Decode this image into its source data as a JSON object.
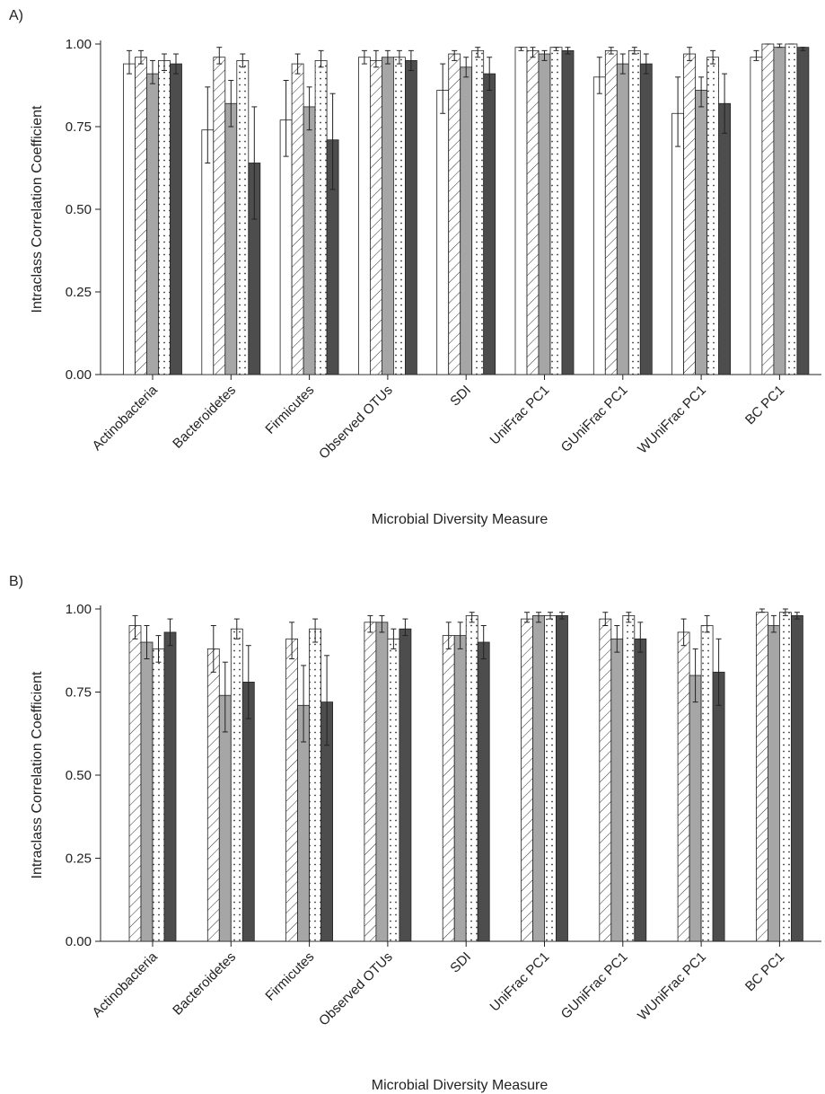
{
  "figure": {
    "x_categories_note": ""
  },
  "chart_data": [
    {
      "type": "bar",
      "panel_label": "A)",
      "xlabel": "Microbial Diversity Measure",
      "ylabel": "Intraclass Correlation Coefficient",
      "ylim": [
        0,
        1.0
      ],
      "yticks": [
        "0.00",
        "0.25",
        "0.50",
        "0.75",
        "1.00"
      ],
      "ytick_values": [
        0,
        0.25,
        0.5,
        0.75,
        1.0
      ],
      "grid": false,
      "categories": [
        "Actinobacteria",
        "Bacteroidetes",
        "Firmicutes",
        "Observed OTUs",
        "SDI",
        "UniFrac PC1",
        "GUniFrac PC1",
        "WUniFrac PC1",
        "BC PC1"
      ],
      "series": [
        {
          "pattern": "white",
          "values": [
            0.94,
            0.74,
            0.77,
            0.96,
            0.86,
            0.99,
            0.9,
            0.79,
            0.96
          ],
          "err_low": [
            0.91,
            0.64,
            0.66,
            0.94,
            0.79,
            0.98,
            0.85,
            0.69,
            0.95
          ],
          "err_high": [
            0.98,
            0.87,
            0.89,
            0.98,
            0.94,
            0.99,
            0.96,
            0.9,
            0.98
          ]
        },
        {
          "pattern": "hatch",
          "values": [
            0.96,
            0.96,
            0.94,
            0.95,
            0.97,
            0.98,
            0.98,
            0.97,
            1.0
          ],
          "err_low": [
            0.94,
            0.94,
            0.91,
            0.93,
            0.95,
            0.96,
            0.97,
            0.95,
            1.0
          ],
          "err_high": [
            0.98,
            0.99,
            0.97,
            0.98,
            0.98,
            0.99,
            0.99,
            0.99,
            1.0
          ]
        },
        {
          "pattern": "gray",
          "values": [
            0.91,
            0.82,
            0.81,
            0.96,
            0.93,
            0.97,
            0.94,
            0.86,
            0.99
          ],
          "err_low": [
            0.88,
            0.75,
            0.74,
            0.94,
            0.9,
            0.95,
            0.91,
            0.81,
            0.99
          ],
          "err_high": [
            0.95,
            0.89,
            0.87,
            0.98,
            0.96,
            0.98,
            0.97,
            0.9,
            1.0
          ]
        },
        {
          "pattern": "dots",
          "values": [
            0.95,
            0.95,
            0.95,
            0.96,
            0.98,
            0.99,
            0.98,
            0.96,
            1.0
          ],
          "err_low": [
            0.92,
            0.93,
            0.93,
            0.94,
            0.96,
            0.98,
            0.97,
            0.94,
            1.0
          ],
          "err_high": [
            0.97,
            0.97,
            0.98,
            0.98,
            0.99,
            0.99,
            0.99,
            0.98,
            1.0
          ]
        },
        {
          "pattern": "dark",
          "values": [
            0.94,
            0.64,
            0.71,
            0.95,
            0.91,
            0.98,
            0.94,
            0.82,
            0.99
          ],
          "err_low": [
            0.91,
            0.47,
            0.56,
            0.92,
            0.86,
            0.97,
            0.91,
            0.73,
            0.98
          ],
          "err_high": [
            0.97,
            0.81,
            0.85,
            0.98,
            0.96,
            0.99,
            0.97,
            0.91,
            0.99
          ]
        }
      ]
    },
    {
      "type": "bar",
      "panel_label": "B)",
      "xlabel": "Microbial Diversity Measure",
      "ylabel": "Intraclass Correlation Coefficient",
      "ylim": [
        0,
        1.0
      ],
      "yticks": [
        "0.00",
        "0.25",
        "0.50",
        "0.75",
        "1.00"
      ],
      "ytick_values": [
        0,
        0.25,
        0.5,
        0.75,
        1.0
      ],
      "grid": false,
      "categories": [
        "Actinobacteria",
        "Bacteroidetes",
        "Firmicutes",
        "Observed OTUs",
        "SDI",
        "UniFrac PC1",
        "GUniFrac PC1",
        "WUniFrac PC1",
        "BC PC1"
      ],
      "series": [
        {
          "pattern": "hatch",
          "values": [
            0.95,
            0.88,
            0.91,
            0.96,
            0.92,
            0.97,
            0.97,
            0.93,
            0.99
          ],
          "err_low": [
            0.91,
            0.81,
            0.85,
            0.93,
            0.88,
            0.96,
            0.95,
            0.89,
            0.99
          ],
          "err_high": [
            0.98,
            0.95,
            0.96,
            0.98,
            0.96,
            0.99,
            0.99,
            0.97,
            1.0
          ]
        },
        {
          "pattern": "gray",
          "values": [
            0.9,
            0.74,
            0.71,
            0.96,
            0.92,
            0.98,
            0.91,
            0.8,
            0.95
          ],
          "err_low": [
            0.85,
            0.63,
            0.6,
            0.93,
            0.88,
            0.96,
            0.87,
            0.72,
            0.93
          ],
          "err_high": [
            0.95,
            0.84,
            0.83,
            0.98,
            0.96,
            0.99,
            0.95,
            0.88,
            0.98
          ]
        },
        {
          "pattern": "dots",
          "values": [
            0.88,
            0.94,
            0.94,
            0.91,
            0.98,
            0.98,
            0.98,
            0.95,
            0.99
          ],
          "err_low": [
            0.84,
            0.91,
            0.9,
            0.88,
            0.96,
            0.97,
            0.96,
            0.93,
            0.98
          ],
          "err_high": [
            0.92,
            0.97,
            0.97,
            0.94,
            0.99,
            0.99,
            0.99,
            0.98,
            1.0
          ]
        },
        {
          "pattern": "dark",
          "values": [
            0.93,
            0.78,
            0.72,
            0.94,
            0.9,
            0.98,
            0.91,
            0.81,
            0.98
          ],
          "err_low": [
            0.89,
            0.67,
            0.59,
            0.92,
            0.85,
            0.97,
            0.87,
            0.71,
            0.97
          ],
          "err_high": [
            0.97,
            0.89,
            0.86,
            0.97,
            0.95,
            0.99,
            0.96,
            0.91,
            0.99
          ]
        }
      ]
    }
  ],
  "colors": {
    "white": "#ffffff",
    "gray": "#a6a6a6",
    "dark": "#4d4d4d",
    "axis": "#222222"
  }
}
